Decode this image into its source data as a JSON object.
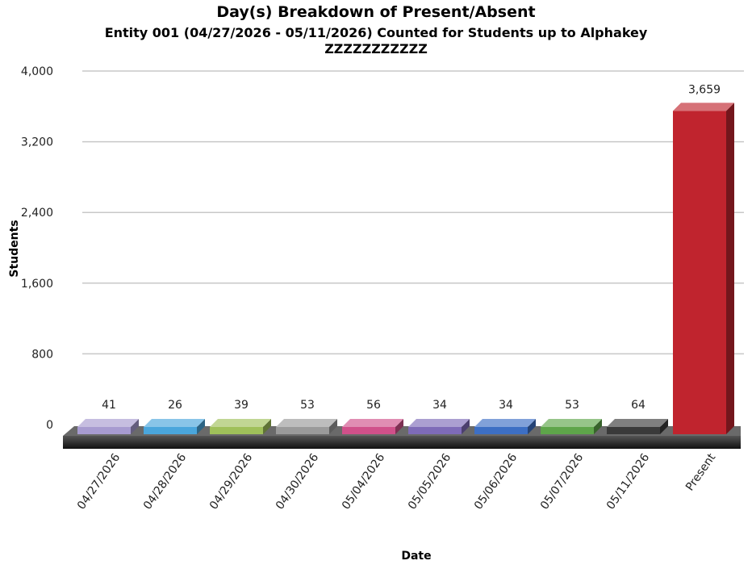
{
  "chart_data": {
    "type": "bar",
    "title": "Day(s) Breakdown of Present/Absent",
    "subtitle_line1": "Entity 001 (04/27/2026 - 05/11/2026) Counted for Students up to Alphakey",
    "subtitle_line2": "ZZZZZZZZZZZ",
    "xlabel": "Date",
    "ylabel": "Students",
    "ylim": [
      0,
      4000
    ],
    "yticks": [
      "0",
      "800",
      "1,600",
      "2,400",
      "3,200",
      "4,000"
    ],
    "grid": true,
    "categories": [
      "04/27/2026",
      "04/28/2026",
      "04/29/2026",
      "04/30/2026",
      "05/04/2026",
      "05/05/2026",
      "05/06/2026",
      "05/07/2026",
      "05/11/2026",
      "Present"
    ],
    "values": [
      41,
      26,
      39,
      53,
      56,
      34,
      34,
      53,
      64,
      3659
    ],
    "value_labels": [
      "41",
      "26",
      "39",
      "53",
      "56",
      "34",
      "34",
      "53",
      "64",
      "3,659"
    ],
    "colors": [
      "#a79bd0",
      "#4aa6dc",
      "#9fc05a",
      "#9a9a9a",
      "#d0508a",
      "#7e6bb8",
      "#3d6fc4",
      "#5ea54a",
      "#3a3a3a",
      "#c0242e"
    ]
  }
}
